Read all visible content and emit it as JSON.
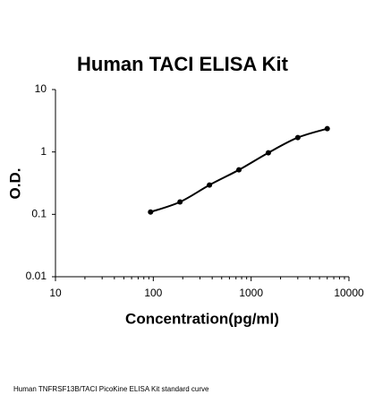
{
  "chart_data": {
    "type": "scatter",
    "title": "Human TACI ELISA Kit",
    "x_label": "Concentration(pg/ml)",
    "y_label": "O.D.",
    "caption": "Human TNFRSF13B/TACI PicoKine ELISA Kit standard curve",
    "x": [
      93.75,
      187.5,
      375,
      750,
      1500,
      3000,
      6000
    ],
    "series": [
      {
        "color": "#000000",
        "values": [
          0.109,
          0.158,
          0.295,
          0.516,
          0.97,
          1.7,
          2.36
        ]
      }
    ],
    "x_log": true,
    "y_log": true,
    "line": true,
    "xlim": [
      10,
      10000
    ],
    "xticks": [
      10,
      100,
      1000,
      10000
    ],
    "ylim": [
      0.01,
      10
    ],
    "yticks": [
      0.01,
      0.1,
      1,
      10
    ]
  }
}
